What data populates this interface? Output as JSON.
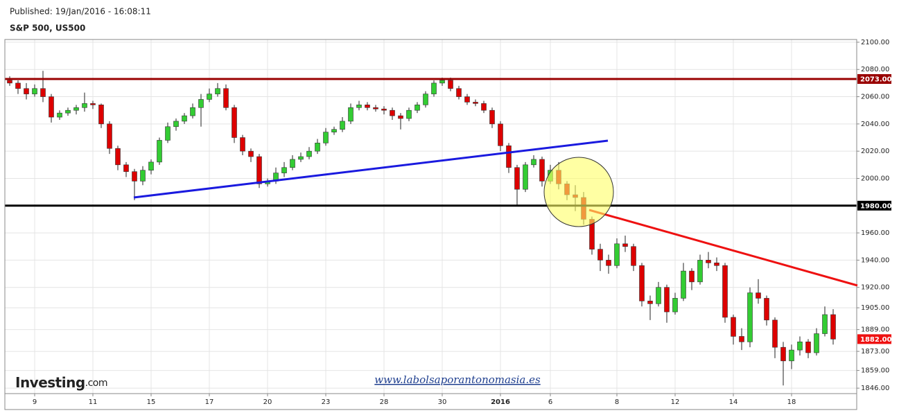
{
  "chart_data": {
    "type": "candlestick",
    "subtitle": "Published: 19/Jan/2016 - 16:08:11",
    "title": "S&P 500, US500",
    "logo": "Investing",
    "logo_suffix": ".com",
    "annotation": "www.labolsaporantonomasia.es",
    "up_color": "#33cc33",
    "down_color": "#dd0000",
    "grid": true,
    "ylim": [
      1842,
      2102
    ],
    "yticks": [
      {
        "value": 2100,
        "label": "2100.00"
      },
      {
        "value": 2080,
        "label": "2080.00"
      },
      {
        "value": 2060,
        "label": "2060.00"
      },
      {
        "value": 2040,
        "label": "2040.00"
      },
      {
        "value": 2020,
        "label": "2020.00"
      },
      {
        "value": 2000,
        "label": "2000.00"
      },
      {
        "value": 1960,
        "label": "1960.00"
      },
      {
        "value": 1940,
        "label": "1940.00"
      },
      {
        "value": 1920,
        "label": "1920.00"
      },
      {
        "value": 1905,
        "label": "1905.00"
      },
      {
        "value": 1889,
        "label": "1889.00"
      },
      {
        "value": 1873,
        "label": "1873.00"
      },
      {
        "value": 1859,
        "label": "1859.00"
      },
      {
        "value": 1846,
        "label": "1846.00"
      }
    ],
    "levels": [
      {
        "value": 2073,
        "label": "2073.00",
        "color": "#990000"
      },
      {
        "value": 1980,
        "label": "1980.00",
        "color": "#000000"
      }
    ],
    "last": {
      "value": 1882,
      "label": "1882.00",
      "color": "#ee1111"
    },
    "categories": [
      null,
      null,
      null,
      "9",
      null,
      null,
      null,
      null,
      null,
      null,
      "11",
      null,
      null,
      null,
      null,
      null,
      null,
      "15",
      null,
      null,
      null,
      null,
      null,
      null,
      "17",
      null,
      null,
      null,
      null,
      null,
      null,
      "20",
      null,
      null,
      null,
      null,
      null,
      null,
      "23",
      null,
      null,
      null,
      null,
      null,
      null,
      "28",
      null,
      null,
      null,
      null,
      null,
      null,
      "30",
      null,
      null,
      null,
      null,
      null,
      null,
      "2016",
      null,
      null,
      null,
      null,
      null,
      "6",
      null,
      null,
      null,
      null,
      null,
      null,
      null,
      "8",
      null,
      null,
      null,
      null,
      null,
      null,
      "12",
      null,
      null,
      null,
      null,
      null,
      null,
      "14",
      null,
      null,
      null,
      null,
      null,
      null,
      "18",
      null,
      null,
      null,
      null,
      null
    ],
    "ohlc": [
      [
        2072,
        2075,
        2068,
        2070
      ],
      [
        2070,
        2072,
        2062,
        2066
      ],
      [
        2066,
        2070,
        2058,
        2062
      ],
      [
        2062,
        2069,
        2060,
        2066
      ],
      [
        2066,
        2079,
        2056,
        2060
      ],
      [
        2060,
        2062,
        2041,
        2045
      ],
      [
        2045,
        2050,
        2043,
        2048
      ],
      [
        2048,
        2052,
        2046,
        2050
      ],
      [
        2050,
        2054,
        2047,
        2052
      ],
      [
        2052,
        2063,
        2049,
        2055
      ],
      [
        2055,
        2057,
        2051,
        2054
      ],
      [
        2054,
        2055,
        2037,
        2040
      ],
      [
        2040,
        2042,
        2018,
        2022
      ],
      [
        2022,
        2024,
        2006,
        2010
      ],
      [
        2010,
        2012,
        2001,
        2005
      ],
      [
        2005,
        2007,
        1984,
        1998
      ],
      [
        1998,
        2009,
        1995,
        2006
      ],
      [
        2006,
        2014,
        2003,
        2012
      ],
      [
        2012,
        2030,
        2010,
        2028
      ],
      [
        2028,
        2041,
        2026,
        2038
      ],
      [
        2038,
        2044,
        2035,
        2042
      ],
      [
        2042,
        2048,
        2040,
        2046
      ],
      [
        2046,
        2055,
        2044,
        2052
      ],
      [
        2052,
        2062,
        2038,
        2058
      ],
      [
        2058,
        2066,
        2056,
        2062
      ],
      [
        2062,
        2070,
        2060,
        2066
      ],
      [
        2066,
        2069,
        2050,
        2052
      ],
      [
        2052,
        2054,
        2026,
        2030
      ],
      [
        2030,
        2032,
        2017,
        2020
      ],
      [
        2020,
        2022,
        2012,
        2016
      ],
      [
        2016,
        2018,
        1993,
        1996
      ],
      [
        1996,
        2000,
        1994,
        1998
      ],
      [
        1998,
        2008,
        1996,
        2004
      ],
      [
        2004,
        2012,
        2001,
        2008
      ],
      [
        2008,
        2017,
        2006,
        2014
      ],
      [
        2014,
        2019,
        2012,
        2016
      ],
      [
        2016,
        2023,
        2014,
        2020
      ],
      [
        2020,
        2029,
        2018,
        2026
      ],
      [
        2026,
        2037,
        2024,
        2034
      ],
      [
        2034,
        2038,
        2032,
        2036
      ],
      [
        2036,
        2045,
        2034,
        2042
      ],
      [
        2042,
        2055,
        2040,
        2052
      ],
      [
        2052,
        2057,
        2050,
        2054
      ],
      [
        2054,
        2056,
        2050,
        2052
      ],
      [
        2052,
        2054,
        2049,
        2051
      ],
      [
        2051,
        2053,
        2047,
        2050
      ],
      [
        2050,
        2052,
        2043,
        2046
      ],
      [
        2046,
        2048,
        2036,
        2044
      ],
      [
        2044,
        2052,
        2042,
        2050
      ],
      [
        2050,
        2056,
        2048,
        2054
      ],
      [
        2054,
        2064,
        2052,
        2062
      ],
      [
        2062,
        2072,
        2060,
        2070
      ],
      [
        2070,
        2074,
        2068,
        2072
      ],
      [
        2072,
        2074,
        2064,
        2066
      ],
      [
        2066,
        2068,
        2058,
        2060
      ],
      [
        2060,
        2062,
        2054,
        2056
      ],
      [
        2056,
        2058,
        2053,
        2055
      ],
      [
        2055,
        2057,
        2048,
        2050
      ],
      [
        2050,
        2052,
        2037,
        2040
      ],
      [
        2040,
        2042,
        2020,
        2024
      ],
      [
        2024,
        2026,
        2004,
        2008
      ],
      [
        2008,
        2010,
        1980,
        1992
      ],
      [
        1992,
        2012,
        1990,
        2010
      ],
      [
        2010,
        2017,
        2008,
        2014
      ],
      [
        2014,
        2016,
        1994,
        1998
      ],
      [
        1998,
        2010,
        1996,
        2006
      ],
      [
        2006,
        2012,
        1992,
        1996
      ],
      [
        1996,
        1998,
        1984,
        1988
      ],
      [
        1988,
        1995,
        1976,
        1986
      ],
      [
        1986,
        1990,
        1966,
        1970
      ],
      [
        1970,
        1972,
        1944,
        1948
      ],
      [
        1948,
        1952,
        1932,
        1940
      ],
      [
        1940,
        1944,
        1930,
        1936
      ],
      [
        1936,
        1956,
        1934,
        1952
      ],
      [
        1952,
        1958,
        1946,
        1950
      ],
      [
        1950,
        1952,
        1932,
        1936
      ],
      [
        1936,
        1938,
        1906,
        1910
      ],
      [
        1910,
        1914,
        1896,
        1908
      ],
      [
        1908,
        1924,
        1906,
        1920
      ],
      [
        1920,
        1922,
        1894,
        1902
      ],
      [
        1902,
        1916,
        1900,
        1912
      ],
      [
        1912,
        1938,
        1910,
        1932
      ],
      [
        1932,
        1934,
        1918,
        1924
      ],
      [
        1924,
        1944,
        1922,
        1940
      ],
      [
        1940,
        1946,
        1934,
        1938
      ],
      [
        1938,
        1942,
        1932,
        1936
      ],
      [
        1936,
        1938,
        1894,
        1898
      ],
      [
        1898,
        1900,
        1878,
        1884
      ],
      [
        1884,
        1890,
        1874,
        1880
      ],
      [
        1880,
        1920,
        1876,
        1916
      ],
      [
        1916,
        1926,
        1908,
        1912
      ],
      [
        1912,
        1914,
        1892,
        1896
      ],
      [
        1896,
        1898,
        1868,
        1876
      ],
      [
        1876,
        1880,
        1848,
        1866
      ],
      [
        1866,
        1878,
        1860,
        1874
      ],
      [
        1874,
        1884,
        1870,
        1880
      ],
      [
        1880,
        1882,
        1868,
        1872
      ],
      [
        1872,
        1890,
        1870,
        1886
      ],
      [
        1886,
        1906,
        1884,
        1900
      ],
      [
        1900,
        1904,
        1878,
        1882
      ]
    ]
  }
}
